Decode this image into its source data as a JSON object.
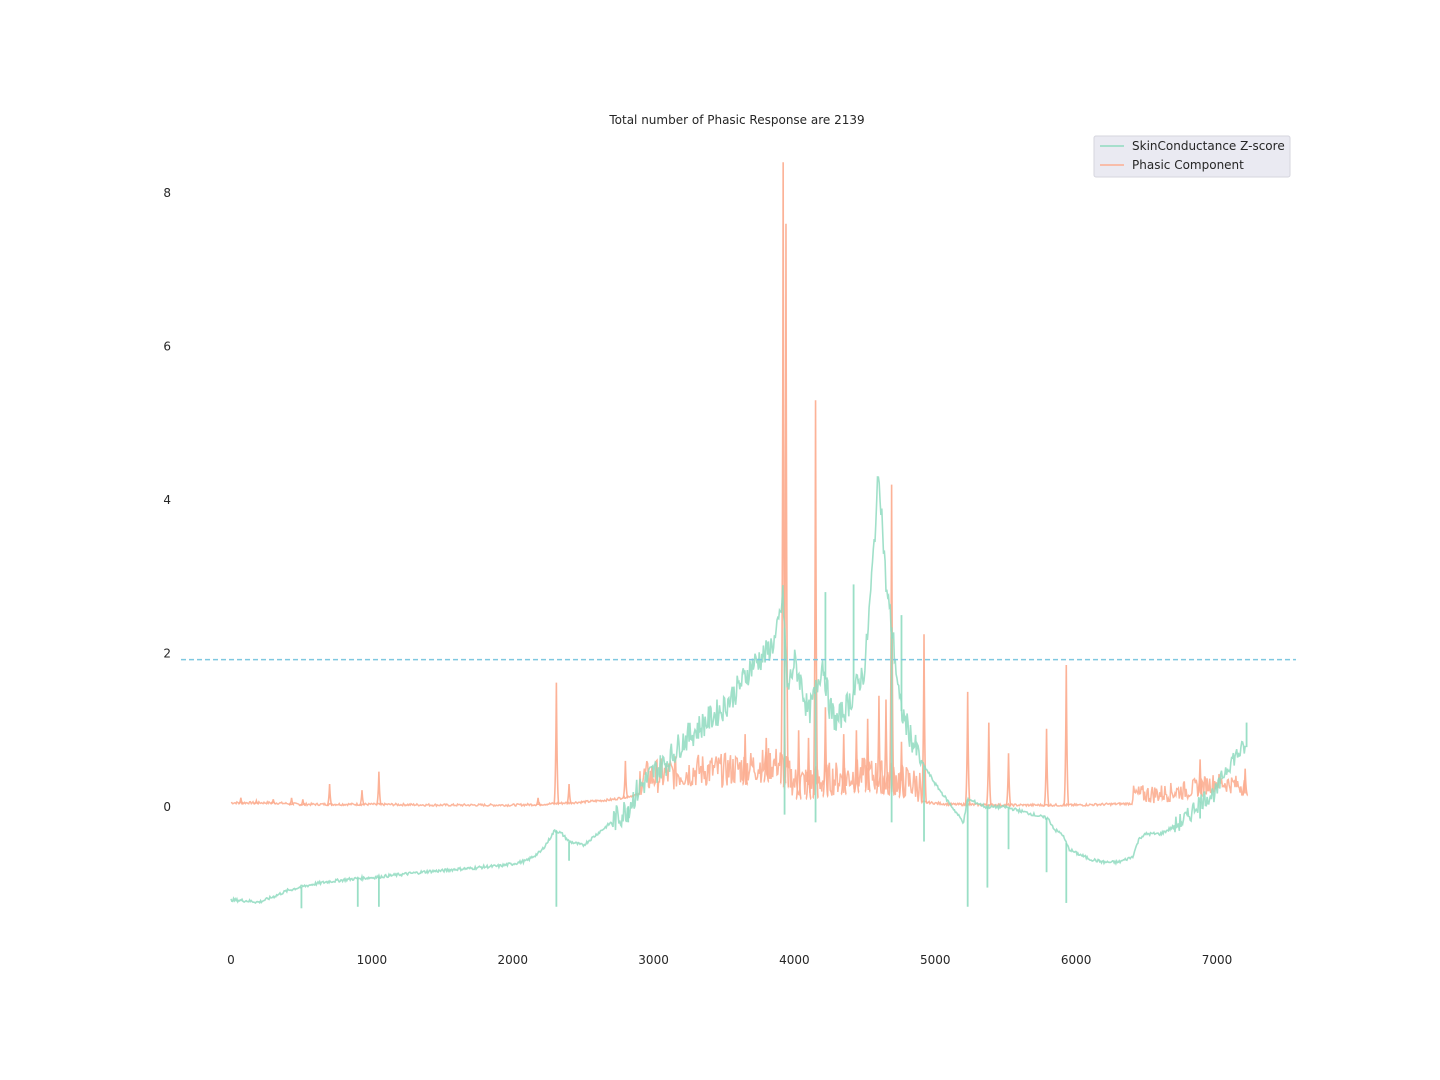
{
  "chart_data": {
    "type": "line",
    "title": "Total number of Phasic Response are 2139",
    "xlabel": "",
    "ylabel": "",
    "xlim": [
      -350,
      7550
    ],
    "ylim": [
      -1.75,
      8.75
    ],
    "x_ticks": [
      0,
      1000,
      2000,
      3000,
      4000,
      5000,
      6000,
      7000
    ],
    "y_ticks": [
      0,
      2,
      4,
      6,
      8
    ],
    "grid": false,
    "legend_position": "top-right",
    "threshold_line": {
      "y": 1.92,
      "style": "dashed",
      "color": "#7fc8e0"
    },
    "series": [
      {
        "name": "SkinConductance Z-score",
        "color": "#8fdbc0",
        "points": [
          [
            0,
            -1.21
          ],
          [
            100,
            -1.22
          ],
          [
            200,
            -1.24
          ],
          [
            300,
            -1.17
          ],
          [
            400,
            -1.09
          ],
          [
            500,
            -1.04
          ],
          [
            600,
            -1.0
          ],
          [
            700,
            -0.97
          ],
          [
            800,
            -0.95
          ],
          [
            900,
            -0.93
          ],
          [
            1000,
            -0.92
          ],
          [
            1100,
            -0.9
          ],
          [
            1200,
            -0.88
          ],
          [
            1300,
            -0.86
          ],
          [
            1400,
            -0.84
          ],
          [
            1500,
            -0.83
          ],
          [
            1600,
            -0.81
          ],
          [
            1700,
            -0.8
          ],
          [
            1800,
            -0.78
          ],
          [
            1900,
            -0.77
          ],
          [
            2000,
            -0.74
          ],
          [
            2100,
            -0.7
          ],
          [
            2200,
            -0.58
          ],
          [
            2250,
            -0.45
          ],
          [
            2300,
            -0.3
          ],
          [
            2350,
            -0.35
          ],
          [
            2400,
            -0.45
          ],
          [
            2500,
            -0.5
          ],
          [
            2600,
            -0.35
          ],
          [
            2700,
            -0.2
          ],
          [
            2800,
            -0.05
          ],
          [
            2900,
            0.25
          ],
          [
            3000,
            0.45
          ],
          [
            3100,
            0.6
          ],
          [
            3200,
            0.85
          ],
          [
            3300,
            1.0
          ],
          [
            3400,
            1.15
          ],
          [
            3500,
            1.3
          ],
          [
            3600,
            1.55
          ],
          [
            3700,
            1.85
          ],
          [
            3800,
            2.0
          ],
          [
            3870,
            2.2
          ],
          [
            3920,
            2.75
          ],
          [
            3950,
            1.5
          ],
          [
            4000,
            1.9
          ],
          [
            4050,
            1.6
          ],
          [
            4100,
            1.2
          ],
          [
            4150,
            1.5
          ],
          [
            4200,
            1.9
          ],
          [
            4250,
            1.3
          ],
          [
            4300,
            1.1
          ],
          [
            4400,
            1.4
          ],
          [
            4500,
            1.8
          ],
          [
            4550,
            3.0
          ],
          [
            4600,
            4.4
          ],
          [
            4650,
            2.9
          ],
          [
            4700,
            2.2
          ],
          [
            4750,
            1.3
          ],
          [
            4800,
            1.05
          ],
          [
            4850,
            0.8
          ],
          [
            4900,
            0.6
          ],
          [
            5000,
            0.3
          ],
          [
            5100,
            0.05
          ],
          [
            5200,
            -0.2
          ],
          [
            5230,
            0.1
          ],
          [
            5300,
            0.05
          ],
          [
            5360,
            0.0
          ],
          [
            5500,
            0.0
          ],
          [
            5600,
            -0.05
          ],
          [
            5700,
            -0.1
          ],
          [
            5800,
            -0.15
          ],
          [
            5850,
            -0.3
          ],
          [
            5900,
            -0.35
          ],
          [
            5950,
            -0.55
          ],
          [
            6000,
            -0.6
          ],
          [
            6100,
            -0.68
          ],
          [
            6200,
            -0.72
          ],
          [
            6300,
            -0.72
          ],
          [
            6400,
            -0.65
          ],
          [
            6450,
            -0.4
          ],
          [
            6500,
            -0.35
          ],
          [
            6600,
            -0.35
          ],
          [
            6700,
            -0.25
          ],
          [
            6800,
            -0.12
          ],
          [
            6850,
            0.02
          ],
          [
            6900,
            0.1
          ],
          [
            7000,
            0.2
          ],
          [
            7050,
            0.45
          ],
          [
            7100,
            0.6
          ],
          [
            7150,
            0.7
          ],
          [
            7200,
            0.78
          ]
        ],
        "spikes": [
          [
            500,
            -1.32
          ],
          [
            900,
            -1.3
          ],
          [
            1050,
            -1.3
          ],
          [
            2310,
            -1.3
          ],
          [
            2400,
            -0.7
          ],
          [
            2820,
            -0.2
          ],
          [
            3930,
            -0.1
          ],
          [
            4150,
            -0.2
          ],
          [
            4220,
            2.8
          ],
          [
            4420,
            2.9
          ],
          [
            4690,
            -0.2
          ],
          [
            4760,
            2.5
          ],
          [
            4920,
            -0.45
          ],
          [
            5230,
            -1.3
          ],
          [
            5370,
            -1.05
          ],
          [
            5520,
            -0.55
          ],
          [
            5790,
            -0.85
          ],
          [
            5930,
            -1.25
          ],
          [
            6880,
            -0.15
          ],
          [
            7210,
            1.1
          ]
        ]
      },
      {
        "name": "Phasic Component",
        "color": "#fcae91",
        "points": [
          [
            0,
            0.04
          ],
          [
            300,
            0.04
          ],
          [
            500,
            0.02
          ],
          [
            700,
            0.02
          ],
          [
            1000,
            0.02
          ],
          [
            1500,
            0.01
          ],
          [
            2000,
            0.01
          ],
          [
            2200,
            0.02
          ],
          [
            2500,
            0.05
          ],
          [
            2700,
            0.08
          ],
          [
            2900,
            0.15
          ],
          [
            3100,
            0.2
          ],
          [
            3300,
            0.25
          ],
          [
            3500,
            0.25
          ],
          [
            3700,
            0.3
          ],
          [
            3900,
            0.35
          ],
          [
            4000,
            0.1
          ],
          [
            4100,
            0.1
          ],
          [
            4300,
            0.15
          ],
          [
            4500,
            0.2
          ],
          [
            4700,
            0.15
          ],
          [
            4900,
            0.05
          ],
          [
            5100,
            0.02
          ],
          [
            5500,
            0.01
          ],
          [
            6000,
            0.01
          ],
          [
            6400,
            0.03
          ],
          [
            6600,
            0.05
          ],
          [
            6800,
            0.1
          ],
          [
            7000,
            0.2
          ],
          [
            7200,
            0.15
          ]
        ],
        "peaks": [
          [
            70,
            0.12
          ],
          [
            180,
            0.08
          ],
          [
            300,
            0.1
          ],
          [
            430,
            0.12
          ],
          [
            510,
            0.1
          ],
          [
            700,
            0.3
          ],
          [
            930,
            0.22
          ],
          [
            1050,
            0.46
          ],
          [
            2180,
            0.12
          ],
          [
            2310,
            1.62
          ],
          [
            2400,
            0.3
          ],
          [
            2800,
            0.6
          ],
          [
            3650,
            0.95
          ],
          [
            3800,
            0.9
          ],
          [
            3920,
            8.4
          ],
          [
            3940,
            7.6
          ],
          [
            4030,
            1.0
          ],
          [
            4100,
            0.9
          ],
          [
            4150,
            5.3
          ],
          [
            4220,
            1.3
          ],
          [
            4350,
            0.95
          ],
          [
            4440,
            1.0
          ],
          [
            4520,
            1.15
          ],
          [
            4600,
            1.45
          ],
          [
            4650,
            1.4
          ],
          [
            4690,
            4.2
          ],
          [
            4760,
            0.85
          ],
          [
            4920,
            2.25
          ],
          [
            5230,
            1.5
          ],
          [
            5380,
            1.1
          ],
          [
            5520,
            0.7
          ],
          [
            5790,
            1.02
          ],
          [
            5930,
            1.85
          ],
          [
            6880,
            0.62
          ],
          [
            7200,
            0.5
          ]
        ]
      }
    ]
  }
}
